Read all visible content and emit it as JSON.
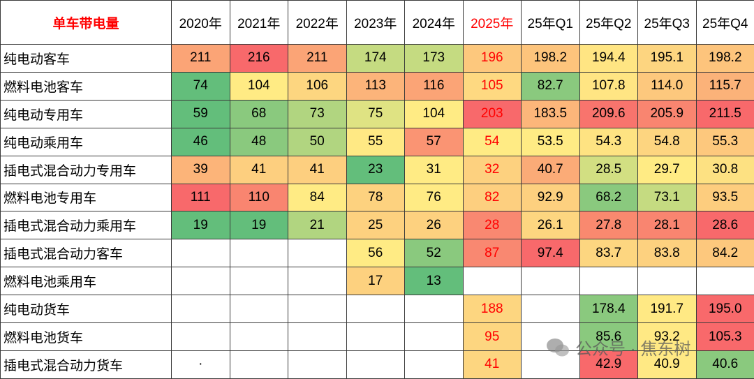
{
  "table": {
    "header": [
      "单车带电量",
      "2020年",
      "2021年",
      "2022年",
      "2023年",
      "2024年",
      "2025年",
      "25年Q1",
      "25年Q2",
      "25年Q3",
      "25年Q4"
    ],
    "accent_color": "#ff0000",
    "accent_headers": [
      0,
      6
    ],
    "accent_column": 6,
    "rows": [
      {
        "label": "纯电动客车",
        "cells": [
          "211",
          "216",
          "211",
          "174",
          "173",
          "196",
          "198.2",
          "194.4",
          "195.1",
          "198.2"
        ],
        "colors": [
          "#fba476",
          "#f8696b",
          "#fba476",
          "#c5db81",
          "#c5db81",
          "#fdc87d",
          "#fdc47c",
          "#ffe583",
          "#fdd580",
          "#fdc47c"
        ]
      },
      {
        "label": "燃料电池客车",
        "cells": [
          "74",
          "104",
          "106",
          "113",
          "116",
          "105",
          "82.7",
          "107.8",
          "114.0",
          "115.7"
        ],
        "colors": [
          "#63be7b",
          "#ffeb84",
          "#fdd680",
          "#fcb47a",
          "#fba476",
          "#fed981",
          "#8ac97e",
          "#ffe583",
          "#fdc87d",
          "#fbb279"
        ]
      },
      {
        "label": "纯电动专用车",
        "cells": [
          "59",
          "68",
          "73",
          "75",
          "104",
          "203",
          "183.5",
          "209.6",
          "205.9",
          "211.5"
        ],
        "colors": [
          "#63be7b",
          "#8ac97e",
          "#b1d580",
          "#dfe383",
          "#ffeb84",
          "#f8696b",
          "#fcb67a",
          "#f8746d",
          "#f98570",
          "#f8696b"
        ]
      },
      {
        "label": "纯电动乘用车",
        "cells": [
          "46",
          "48",
          "50",
          "55",
          "57",
          "54",
          "53.5",
          "54.3",
          "54.8",
          "55.3"
        ],
        "colors": [
          "#63be7b",
          "#8ac97e",
          "#b1d580",
          "#ffe984",
          "#fa9473",
          "#ffeb84",
          "#ffeb84",
          "#fee382",
          "#fdd580",
          "#fdc87d"
        ]
      },
      {
        "label": "插电式混合动力专用车",
        "cells": [
          "39",
          "41",
          "41",
          "23",
          "31",
          "32",
          "40.7",
          "28.5",
          "29.7",
          "30.8"
        ],
        "colors": [
          "#fcb479",
          "#fdcf7f",
          "#fdcf7f",
          "#63be7b",
          "#ffeb84",
          "#fdd17f",
          "#fbab77",
          "#d2df82",
          "#ffeb84",
          "#fde182"
        ]
      },
      {
        "label": "燃料电池专用车",
        "cells": [
          "111",
          "110",
          "84",
          "78",
          "76",
          "82",
          "92.9",
          "68.2",
          "73.1",
          "93.5"
        ],
        "colors": [
          "#f8696b",
          "#f98570",
          "#ffeb84",
          "#fdd27f",
          "#ffeb84",
          "#fdcf7f",
          "#fdd07f",
          "#8ac97e",
          "#c5db81",
          "#fdcd7e"
        ]
      },
      {
        "label": "插电式混合动力乘用车",
        "cells": [
          "19",
          "19",
          "21",
          "25",
          "26",
          "28",
          "26.1",
          "27.8",
          "28.1",
          "28.6"
        ],
        "colors": [
          "#63be7b",
          "#63be7b",
          "#b1d580",
          "#fdd17f",
          "#fdd17f",
          "#f98871",
          "#fdd680",
          "#f9896f",
          "#f98570",
          "#f8696b"
        ]
      },
      {
        "label": "插电式混合动力客车",
        "cells": [
          null,
          null,
          null,
          "56",
          "52",
          "87",
          "97.4",
          "83.7",
          "83.8",
          "84.2"
        ],
        "colors": [
          null,
          null,
          null,
          "#ffeb84",
          "#8ac97e",
          "#f98871",
          "#f8696b",
          "#fdd680",
          "#fdd17f",
          "#fdc87d"
        ]
      },
      {
        "label": "燃料电池乘用车",
        "cells": [
          null,
          null,
          null,
          "17",
          "13",
          null,
          null,
          null,
          null,
          null
        ],
        "colors": [
          null,
          null,
          null,
          "#fdd17f",
          "#63be7b",
          null,
          null,
          null,
          null,
          null
        ]
      },
      {
        "label": "纯电动货车",
        "cells": [
          null,
          null,
          null,
          null,
          null,
          "188",
          null,
          "178.4",
          "191.7",
          "195.0"
        ],
        "colors": [
          null,
          null,
          null,
          null,
          null,
          "#fdd680",
          null,
          "#8ac97e",
          "#ffe984",
          "#f8696b"
        ]
      },
      {
        "label": "燃料电池货车",
        "cells": [
          null,
          null,
          null,
          null,
          null,
          "95",
          null,
          "85.6",
          "93.2",
          "105.3"
        ],
        "colors": [
          null,
          null,
          null,
          null,
          null,
          "#fdd680",
          null,
          "#8ac97e",
          "#ffe984",
          "#f8696b"
        ]
      },
      {
        "label": "插电式混合动力货车",
        "cells": [
          "·",
          null,
          null,
          null,
          null,
          "41",
          null,
          "42.9",
          "40.9",
          "40.6"
        ],
        "colors": [
          null,
          null,
          null,
          null,
          null,
          "#fdd680",
          null,
          "#f8696b",
          "#ffe984",
          "#8ac97e"
        ]
      }
    ]
  },
  "watermark": "公众号 · 焦东树"
}
